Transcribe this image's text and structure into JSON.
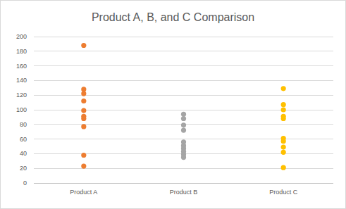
{
  "chart_data": {
    "type": "strip",
    "title": "Product A, B, and C Comparison",
    "categories": [
      "Product A",
      "Product B",
      "Product C"
    ],
    "values": [
      [
        188,
        128,
        122,
        112,
        99,
        91,
        88,
        77,
        38,
        23
      ],
      [
        94,
        88,
        79,
        72,
        56,
        51,
        47,
        43,
        39,
        35
      ],
      [
        129,
        107,
        100,
        91,
        88,
        61,
        57,
        49,
        42,
        21
      ]
    ],
    "colors": [
      "#ed7d31",
      "#a5a5a5",
      "#ffc000"
    ],
    "ylim": [
      0,
      200
    ],
    "yticks": [
      0,
      20,
      40,
      60,
      80,
      100,
      120,
      140,
      160,
      180,
      200
    ],
    "grid": true
  }
}
